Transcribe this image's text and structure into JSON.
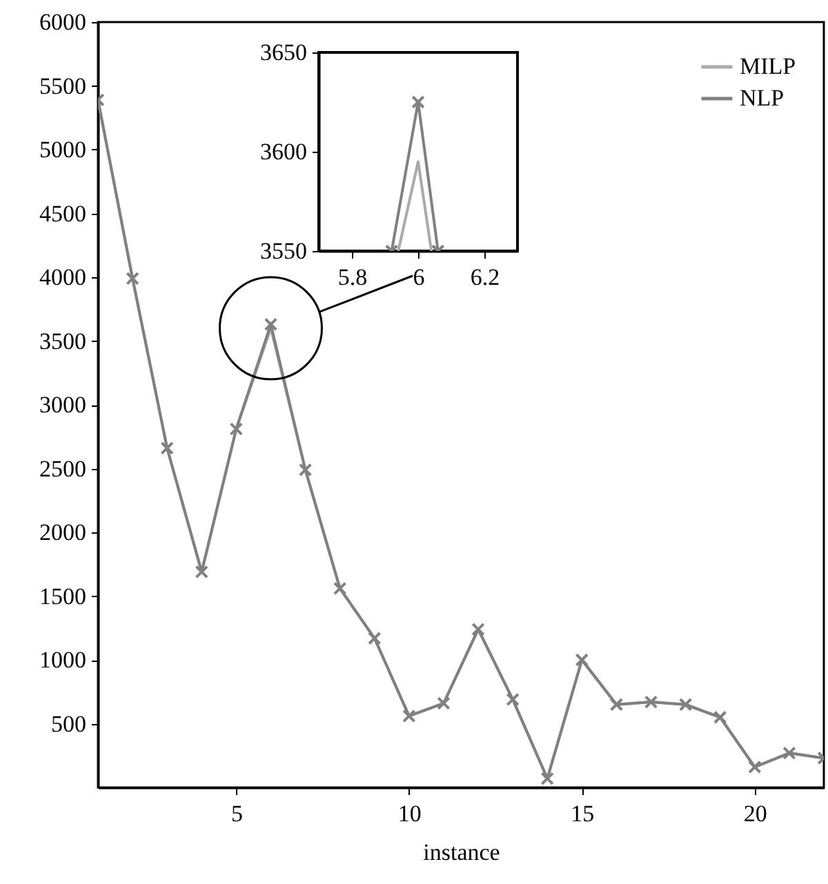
{
  "chart_data": [
    {
      "type": "line",
      "xlabel": "instance",
      "x": [
        1,
        2,
        3,
        4,
        5,
        6,
        7,
        8,
        9,
        10,
        11,
        12,
        13,
        14,
        15,
        16,
        17,
        18,
        19,
        20,
        21,
        22
      ],
      "xlim": [
        1,
        22
      ],
      "xticks": [
        5,
        10,
        15,
        20
      ],
      "ylim": [
        0,
        6000
      ],
      "yticks": [
        500,
        1000,
        1500,
        2000,
        2500,
        3000,
        3500,
        4000,
        4500,
        5000,
        5500,
        6000
      ],
      "legend": "top right",
      "grid": false,
      "line_style": "solid",
      "series": [
        {
          "name": "MILP",
          "color": "#aaaaaa",
          "marker": "none",
          "values": [
            5390,
            3990,
            2660,
            1690,
            2810,
            3600,
            2490,
            1560,
            1170,
            560,
            660,
            1240,
            690,
            70,
            1000,
            650,
            670,
            650,
            550,
            160,
            270,
            230
          ]
        },
        {
          "name": "NLP",
          "color": "#808080",
          "marker": "cross",
          "values": [
            5390,
            3990,
            2660,
            1690,
            2810,
            3630,
            2490,
            1560,
            1170,
            560,
            660,
            1240,
            690,
            70,
            1000,
            650,
            670,
            650,
            550,
            160,
            270,
            230
          ]
        }
      ]
    },
    {
      "type": "line",
      "xlim": [
        5.7,
        6.3
      ],
      "xticks": [
        5.8,
        6,
        6.2
      ],
      "ylim": [
        3550,
        3650
      ],
      "yticks": [
        3550,
        3600,
        3650
      ],
      "grid": false,
      "legend": false,
      "line_style": "solid",
      "series": [
        {
          "color": "#aaaaaa",
          "marker": "none",
          "x": [
            5.94,
            6,
            6.04
          ],
          "values": [
            3550,
            3595,
            3550
          ]
        },
        {
          "color": "#808080",
          "marker": "cross",
          "x": [
            5.92,
            6,
            6.06
          ],
          "values": [
            3550,
            3625,
            3550
          ]
        }
      ]
    }
  ]
}
